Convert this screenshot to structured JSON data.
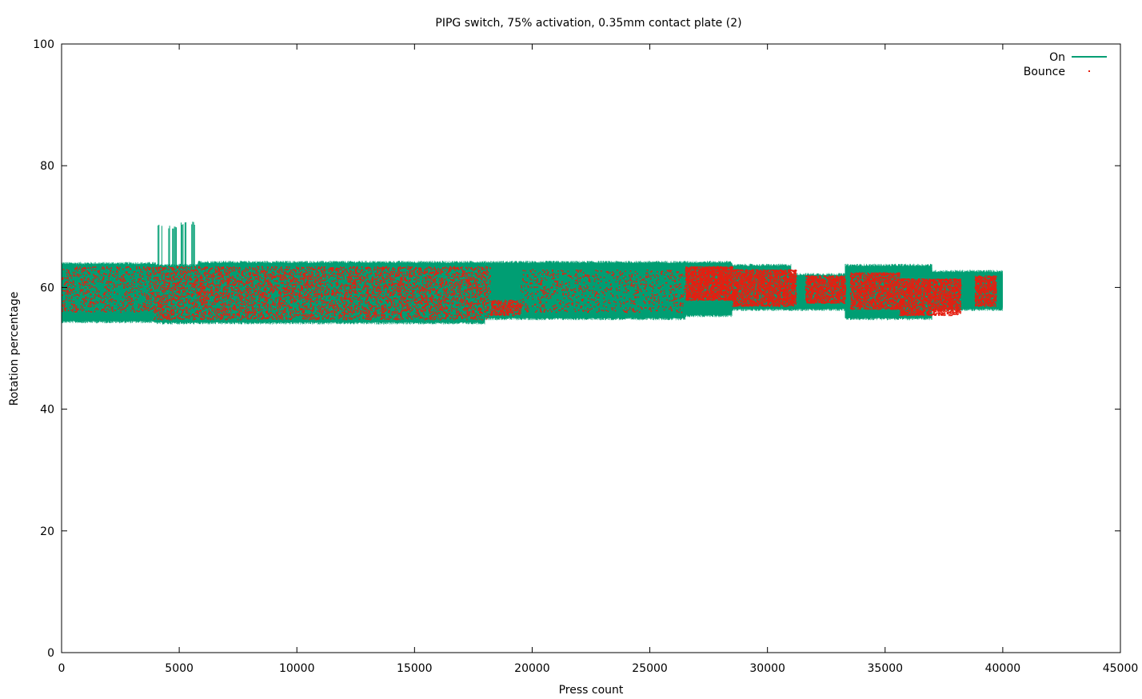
{
  "chart_data": {
    "type": "scatter",
    "title": "PIPG switch, 75% activation, 0.35mm contact plate (2)",
    "xlabel": "Press count",
    "ylabel": "Rotation percentage",
    "xlim": [
      0,
      45000
    ],
    "ylim": [
      0,
      100
    ],
    "xticks": [
      "0",
      "5000",
      "10000",
      "15000",
      "20000",
      "25000",
      "30000",
      "35000",
      "40000",
      "45000"
    ],
    "yticks": [
      "0",
      "20",
      "40",
      "60",
      "80",
      "100"
    ],
    "grid": false,
    "legend_position": "top-right",
    "series": [
      {
        "name": "On",
        "style": "line",
        "color": "#009e73",
        "bands": [
          {
            "x": [
              0,
              4000
            ],
            "y": [
              54.5,
              63.8
            ]
          },
          {
            "x": [
              4000,
              5800
            ],
            "y": [
              54.3,
              63.5
            ]
          },
          {
            "x": [
              5800,
              18000
            ],
            "y": [
              54.3,
              64.0
            ]
          },
          {
            "x": [
              18000,
              26500
            ],
            "y": [
              55.0,
              64.0
            ]
          },
          {
            "x": [
              26500,
              28500
            ],
            "y": [
              55.5,
              64.0
            ]
          },
          {
            "x": [
              28500,
              31000
            ],
            "y": [
              56.5,
              63.5
            ]
          },
          {
            "x": [
              31000,
              33300
            ],
            "y": [
              56.5,
              62.0
            ]
          },
          {
            "x": [
              33300,
              37000
            ],
            "y": [
              55.0,
              63.5
            ]
          },
          {
            "x": [
              37000,
              40000
            ],
            "y": [
              56.5,
              62.5
            ]
          }
        ],
        "spikes": [
          {
            "x": [
              4100,
              4300
            ],
            "y": [
              63.5,
              70.5
            ]
          },
          {
            "x": [
              4550,
              4900
            ],
            "y": [
              63.5,
              70.2
            ]
          },
          {
            "x": [
              5000,
              5800
            ],
            "y": [
              63.5,
              70.8
            ]
          }
        ]
      },
      {
        "name": "Bounce",
        "style": "points",
        "color": "#e51e10",
        "bands": [
          {
            "x": [
              0,
              3900
            ],
            "y": [
              56.0,
              63.5
            ],
            "density": 0.12
          },
          {
            "x": [
              3900,
              18200
            ],
            "y": [
              54.8,
              63.5
            ],
            "density": 1.0
          },
          {
            "x": [
              18200,
              19500
            ],
            "y": [
              55.5,
              58.0
            ],
            "density": 0.5
          },
          {
            "x": [
              19500,
              26500
            ],
            "y": [
              56.0,
              63.0
            ],
            "density": 0.08
          },
          {
            "x": [
              26500,
              28500
            ],
            "y": [
              58.0,
              63.5
            ],
            "density": 0.9
          },
          {
            "x": [
              28500,
              31200
            ],
            "y": [
              57.0,
              63.0
            ],
            "density": 0.7
          },
          {
            "x": [
              31600,
              33300
            ],
            "y": [
              57.5,
              62.0
            ],
            "density": 0.7
          },
          {
            "x": [
              33500,
              35600
            ],
            "y": [
              56.5,
              62.5
            ],
            "density": 0.6
          },
          {
            "x": [
              35600,
              38200
            ],
            "y": [
              55.5,
              61.5
            ],
            "density": 0.7
          },
          {
            "x": [
              38800,
              39700
            ],
            "y": [
              57.0,
              62.0
            ],
            "density": 0.7
          }
        ]
      }
    ]
  }
}
